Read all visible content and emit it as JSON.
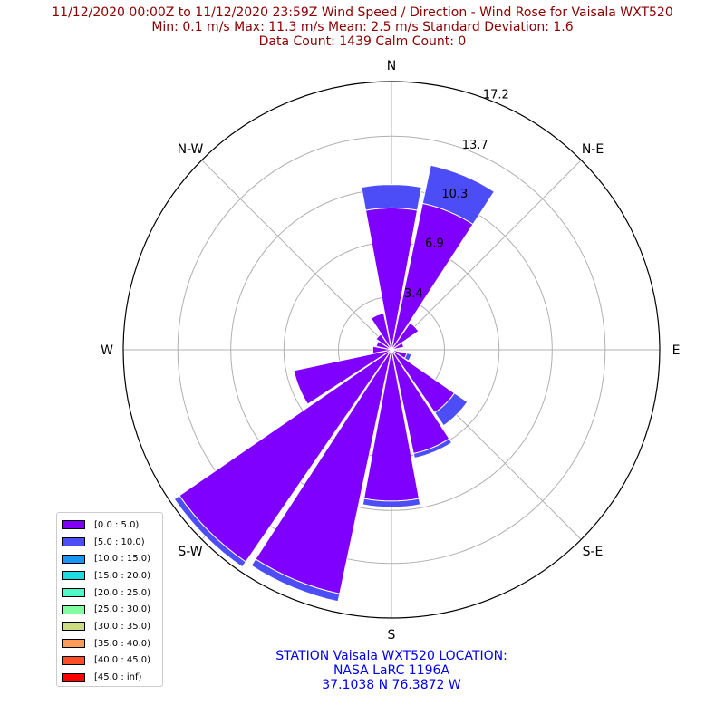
{
  "title": {
    "line1": "11/12/2020 00:00Z to 11/12/2020 23:59Z Wind Speed / Direction - Wind Rose for Vaisala WXT520",
    "line2": "Min: 0.1 m/s   Max: 11.3 m/s   Mean: 2.5 m/s  Standard Deviation: 1.6",
    "line3": "Data Count: 1439  Calm Count:  0"
  },
  "station": {
    "line1": "STATION Vaisala WXT520 LOCATION:",
    "line2": "NASA LaRC 1196A",
    "line3": "37.1038 N 76.3872 W"
  },
  "colors": {
    "title": "#8b0000",
    "station": "#0000ee",
    "grid": "#b0b0b0"
  },
  "chart_data": {
    "type": "wind-rose",
    "rmax": 17.2,
    "radial_ticks": [
      3.4,
      6.9,
      10.3,
      13.7,
      17.2
    ],
    "radial_tick_labels": [
      "3.4",
      "6.9",
      "10.3",
      "13.7",
      "17.2"
    ],
    "compass_labels": [
      {
        "label": "N",
        "deg": 0
      },
      {
        "label": "N-E",
        "deg": 45
      },
      {
        "label": "E",
        "deg": 90
      },
      {
        "label": "S-E",
        "deg": 135
      },
      {
        "label": "S",
        "deg": 180
      },
      {
        "label": "S-W",
        "deg": 225
      },
      {
        "label": "W",
        "deg": 270
      },
      {
        "label": "N-W",
        "deg": 315
      }
    ],
    "bins": [
      {
        "label": "[0.0 : 5.0)",
        "color": "#7f00ff"
      },
      {
        "label": "[5.0 : 10.0)",
        "color": "#4d4df8"
      },
      {
        "label": "[10.0 : 15.0)",
        "color": "#1996f3"
      },
      {
        "label": "[15.0 : 20.0)",
        "color": "#1ddde0"
      },
      {
        "label": "[20.0 : 25.0)",
        "color": "#4df9c5"
      },
      {
        "label": "[25.0 : 30.0)",
        "color": "#81fda2"
      },
      {
        "label": "[30.0 : 35.0)",
        "color": "#cddc82"
      },
      {
        "label": "[35.0 : 40.0)",
        "color": "#ff9a58"
      },
      {
        "label": "[40.0 : 45.0)",
        "color": "#ff4d27"
      },
      {
        "label": "[45.0 : inf)",
        "color": "#ff0000"
      }
    ],
    "directions": [
      {
        "deg": 0,
        "values": [
          9.1,
          1.5
        ]
      },
      {
        "deg": 22.5,
        "values": [
          9.6,
          2.5
        ]
      },
      {
        "deg": 45,
        "values": [
          2.1,
          0
        ]
      },
      {
        "deg": 67.5,
        "values": [
          0.8,
          0
        ]
      },
      {
        "deg": 90,
        "values": [
          0.3,
          0
        ]
      },
      {
        "deg": 112.5,
        "values": [
          1.0,
          0.3
        ]
      },
      {
        "deg": 135,
        "values": [
          4.9,
          1.0
        ]
      },
      {
        "deg": 157.5,
        "values": [
          6.8,
          0.3
        ]
      },
      {
        "deg": 180,
        "values": [
          9.7,
          0.4
        ]
      },
      {
        "deg": 202.5,
        "values": [
          16.0,
          0.5
        ]
      },
      {
        "deg": 225,
        "values": [
          16.5,
          0.4
        ]
      },
      {
        "deg": 247.5,
        "values": [
          6.4,
          0
        ]
      },
      {
        "deg": 270,
        "values": [
          1.2,
          0
        ]
      },
      {
        "deg": 292.5,
        "values": [
          1.0,
          0
        ]
      },
      {
        "deg": 315,
        "values": [
          1.2,
          0
        ]
      },
      {
        "deg": 337.5,
        "values": [
          2.4,
          0
        ]
      }
    ]
  }
}
